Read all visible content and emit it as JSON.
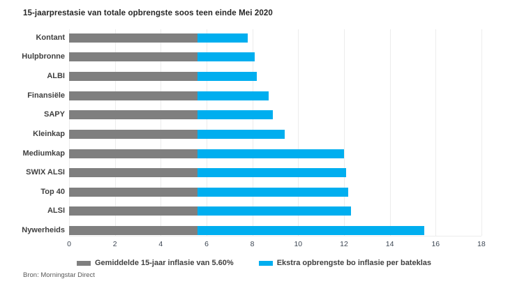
{
  "chart_data": {
    "type": "bar",
    "orientation": "horizontal",
    "stacked": true,
    "title": "15-jaarprestasie van totale opbrengste soos teen einde Mei 2020",
    "categories": [
      "Kontant",
      "Hulpbronne",
      "ALBI",
      "Finansiële",
      "SAPY",
      "Kleinkap",
      "Mediumkap",
      "SWIX ALSI",
      "Top 40",
      "ALSI",
      "Nywerheids"
    ],
    "series": [
      {
        "name": "Gemiddelde 15-jaar inflasie van 5.60%",
        "color": "#7f7f7f",
        "values": [
          5.6,
          5.6,
          5.6,
          5.6,
          5.6,
          5.6,
          5.6,
          5.6,
          5.6,
          5.6,
          5.6
        ]
      },
      {
        "name": "Ekstra opbrengste bo inflasie per bateklas",
        "color": "#00aeef",
        "values": [
          2.2,
          2.5,
          2.6,
          3.1,
          3.3,
          3.8,
          6.4,
          6.5,
          6.6,
          6.7,
          9.9
        ]
      }
    ],
    "totals": [
      7.8,
      8.1,
      8.2,
      8.7,
      8.9,
      9.4,
      12.0,
      12.1,
      12.2,
      12.3,
      15.5
    ],
    "xlabel": "",
    "ylabel": "",
    "xlim": [
      0,
      18
    ],
    "xticks": [
      0,
      2,
      4,
      6,
      8,
      10,
      12,
      14,
      16,
      18
    ],
    "grid": "vertical",
    "legend_position": "bottom"
  },
  "source": "Bron: Morningstar Direct",
  "colors": {
    "inflation_bar": "#7f7f7f",
    "extra_bar": "#00aeef",
    "gridline": "#ececec",
    "title_text": "#262626",
    "label_text": "#3f3f3f",
    "axis_text": "#3c4653",
    "source_text": "#595959",
    "background": "#ffffff"
  }
}
